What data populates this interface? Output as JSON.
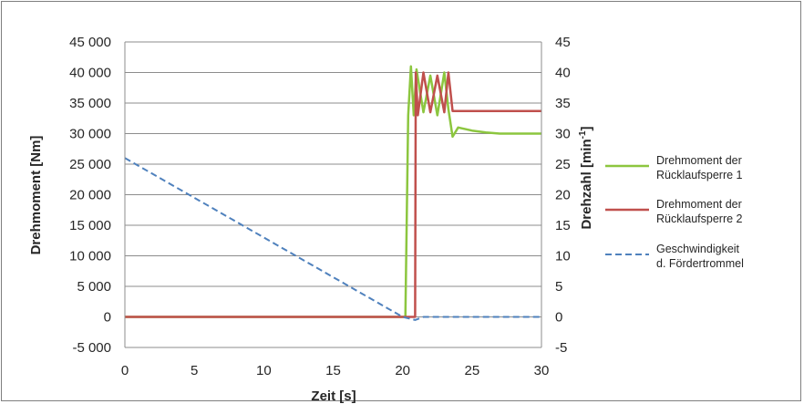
{
  "chart_data": {
    "type": "line",
    "xlabel": "Zeit  [s]",
    "ylabel_left": "Drehmoment  [Nm]",
    "ylabel_right_main": "Drehzahl  [min",
    "ylabel_right_sup": "-1",
    "ylabel_right_close": "]",
    "xlim": [
      0,
      30
    ],
    "ylim_left": [
      -5000,
      45000
    ],
    "ylim_right": [
      -5,
      45
    ],
    "x_ticks": [
      0,
      5,
      10,
      15,
      20,
      25,
      30
    ],
    "x_tick_labels": [
      "0",
      "5",
      "10",
      "15",
      "20",
      "25",
      "30"
    ],
    "y_left_ticks": [
      45000,
      40000,
      35000,
      30000,
      25000,
      20000,
      15000,
      10000,
      5000,
      0,
      -5000
    ],
    "y_left_tick_labels": [
      "45 000",
      "40 000",
      "35 000",
      "30 000",
      "25 000",
      "20 000",
      "15 000",
      "10 000",
      "5 000",
      "0",
      "-5 000"
    ],
    "y_right_ticks": [
      45,
      40,
      35,
      30,
      25,
      20,
      15,
      10,
      5,
      0,
      -5
    ],
    "y_right_tick_labels": [
      "45",
      "40",
      "35",
      "30",
      "25",
      "20",
      "15",
      "10",
      "5",
      "0",
      "-5"
    ],
    "grid": true,
    "legend_position": "right",
    "series": [
      {
        "name_line1": "Drehmoment der",
        "name_line2": "Rücklaufsperre 1",
        "axis": "left",
        "color": "#8cc63f",
        "style": "solid",
        "x": [
          0,
          20.2,
          20.4,
          20.6,
          20.8,
          21.0,
          21.5,
          22.0,
          22.5,
          23.0,
          23.3,
          23.6,
          24.0,
          25.0,
          26.0,
          27.0,
          30.0
        ],
        "y": [
          0,
          0,
          33000,
          41000,
          33000,
          40500,
          33500,
          39500,
          33000,
          40000,
          34000,
          29500,
          31000,
          30500,
          30200,
          30000,
          30000
        ]
      },
      {
        "name_line1": "Drehmoment der",
        "name_line2": "Rücklaufsperre 2",
        "axis": "left",
        "color": "#c0504d",
        "style": "solid",
        "x": [
          0,
          20.9,
          20.95,
          21.1,
          21.5,
          22.0,
          22.5,
          23.0,
          23.3,
          23.6,
          30.0
        ],
        "y": [
          0,
          0,
          40000,
          33000,
          40000,
          33500,
          39500,
          33500,
          40000,
          33700,
          33700
        ]
      },
      {
        "name_line1": "Geschwindigkeit",
        "name_line2": "d. Fördertrommel",
        "axis": "right",
        "color": "#4f81bd",
        "style": "dashed",
        "x": [
          0,
          20.0,
          20.9,
          21.5,
          30.0
        ],
        "y": [
          26,
          0,
          -0.5,
          0,
          0
        ]
      }
    ]
  }
}
